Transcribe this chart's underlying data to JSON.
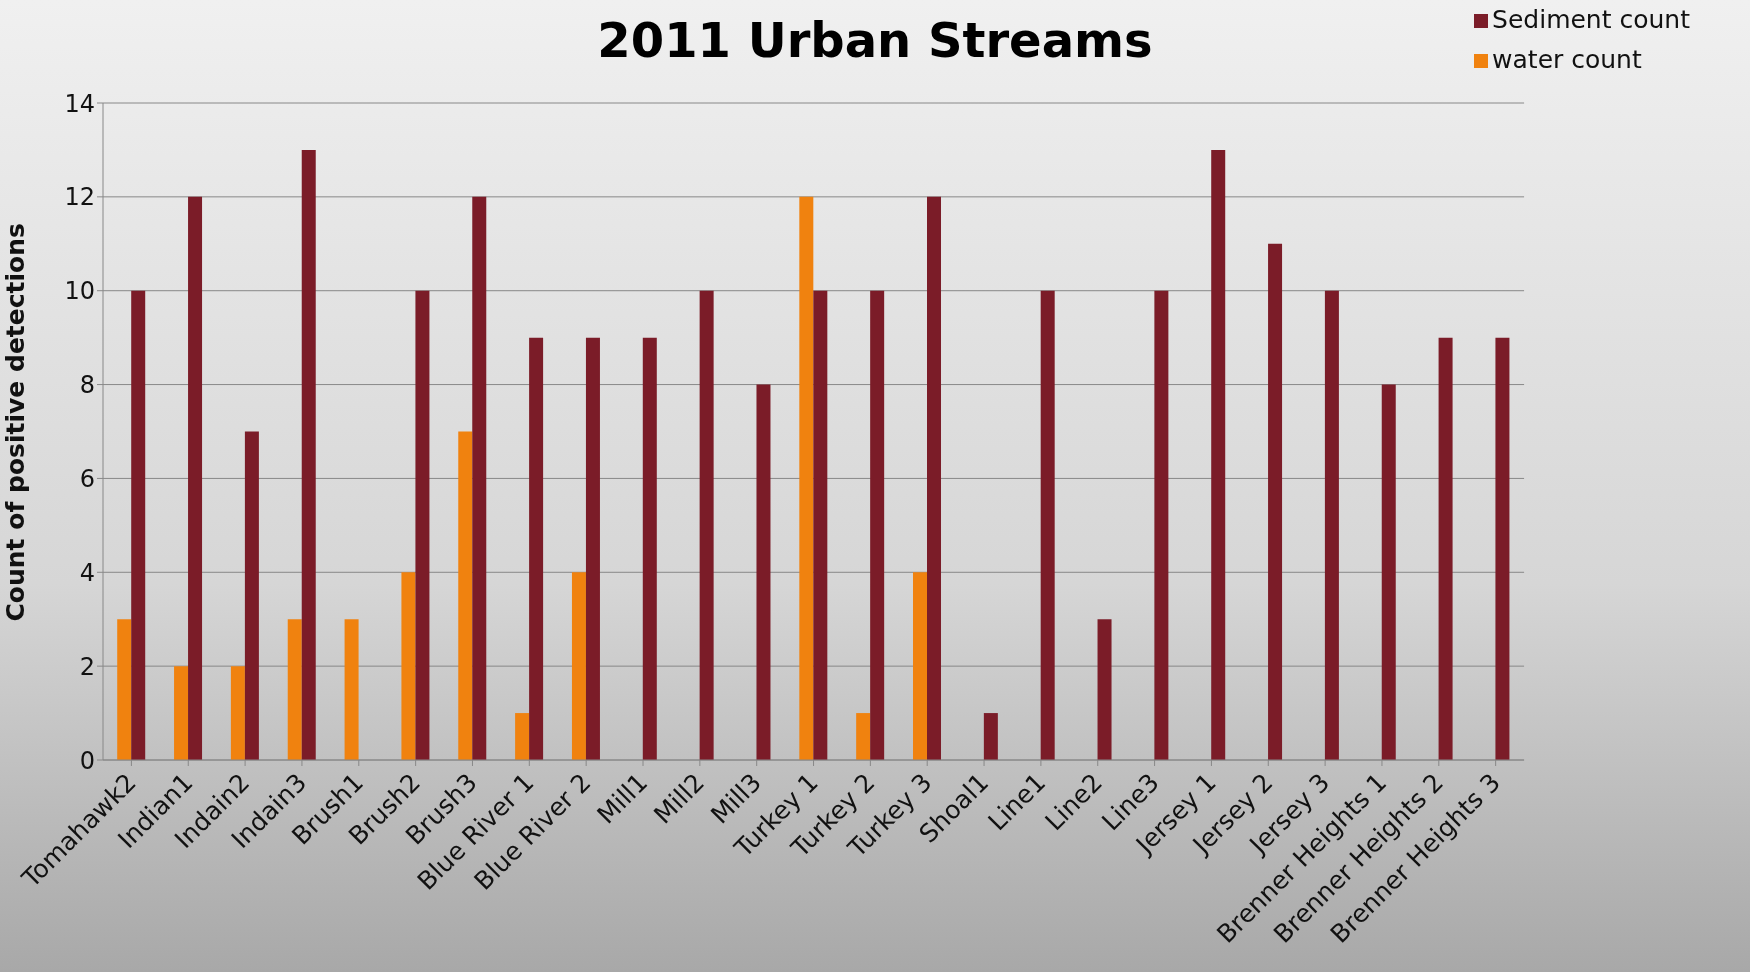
{
  "chart_data": {
    "type": "bar",
    "title": "2011 Urban Streams",
    "ylabel": "Count of positive detections",
    "categories": [
      "Tomahawk2",
      "Indian1",
      "Indain2",
      "Indain3",
      "Brush1",
      "Brush2",
      "Brush3",
      "Blue River 1",
      "Blue River 2",
      "Mill1",
      "Mill2",
      "Mill3",
      "Turkey 1",
      "Turkey 2",
      "Turkey 3",
      "Shoal1",
      "Line1",
      "Line2",
      "Line3",
      "Jersey 1",
      "Jersey 2",
      "Jersey 3",
      "Brenner Heights 1",
      "Brenner Heights 2",
      "Brenner Heights 3"
    ],
    "series": [
      {
        "name": "water count",
        "color": "#f0820f",
        "values": [
          3,
          2,
          2,
          3,
          3,
          4,
          7,
          1,
          4,
          0,
          0,
          0,
          12,
          1,
          4,
          0,
          0,
          0,
          0,
          0,
          0,
          0,
          0,
          0,
          0
        ]
      },
      {
        "name": "Sediment count",
        "color": "#7b1c28",
        "values": [
          10,
          12,
          7,
          13,
          0,
          10,
          12,
          9,
          9,
          9,
          10,
          8,
          10,
          10,
          12,
          1,
          10,
          3,
          10,
          13,
          11,
          10,
          8,
          9,
          9
        ]
      }
    ],
    "ylim": [
      0,
      14
    ],
    "yticks": [
      0,
      2,
      4,
      6,
      8,
      10,
      12,
      14
    ],
    "grid": "y",
    "legend": "top right"
  }
}
